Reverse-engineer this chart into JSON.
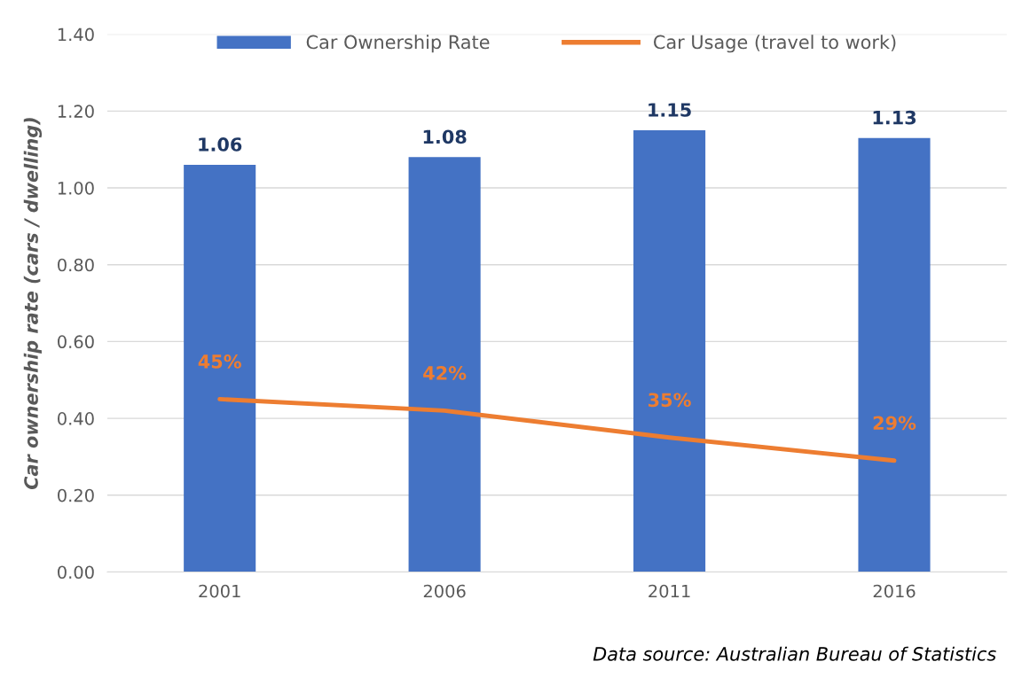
{
  "chart_data": {
    "type": "bar",
    "ylabel": "Car ownership rate (cars / dwelling)",
    "categories": [
      "2001",
      "2006",
      "2011",
      "2016"
    ],
    "series": [
      {
        "name": "Car Ownership Rate",
        "color": "#4472c4",
        "values": [
          1.06,
          1.08,
          1.15,
          1.13
        ],
        "value_labels": [
          "1.06",
          "1.08",
          "1.15",
          "1.13"
        ]
      },
      {
        "name": "Car Usage (travel to work)",
        "type": "line",
        "color": "#ed7d31",
        "values": [
          0.45,
          0.42,
          0.35,
          0.29
        ],
        "value_labels": [
          "45%",
          "42%",
          "35%",
          "29%"
        ]
      }
    ],
    "ylim": [
      0,
      1.4
    ],
    "yticks": [
      {
        "value": 0,
        "label": "0.00"
      },
      {
        "value": 0.2,
        "label": "0.20"
      },
      {
        "value": 0.4,
        "label": "0.40"
      },
      {
        "value": 0.6,
        "label": "0.60"
      },
      {
        "value": 0.8,
        "label": "0.80"
      },
      {
        "value": 1.0,
        "label": "1.00"
      },
      {
        "value": 1.2,
        "label": "1.20"
      },
      {
        "value": 1.4,
        "label": "1.40"
      }
    ],
    "grid": "y",
    "legend": "top",
    "annotations": [
      "Data source: Australian Bureau of Statistics"
    ]
  }
}
